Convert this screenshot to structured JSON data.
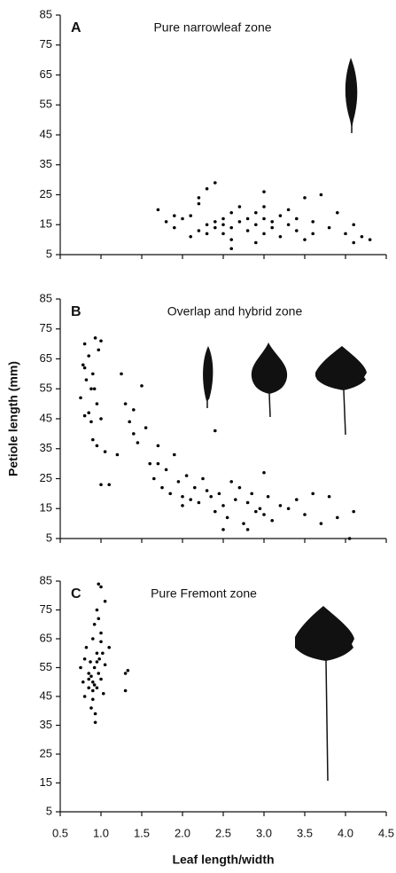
{
  "chart_data": [
    {
      "type": "scatter",
      "label": "A",
      "title": "Pure narrowleaf zone",
      "color": "#000000",
      "x": [
        1.7,
        1.8,
        1.9,
        2.0,
        2.1,
        2.1,
        2.2,
        2.2,
        2.3,
        2.3,
        2.4,
        2.4,
        2.5,
        2.5,
        2.5,
        2.6,
        2.6,
        2.6,
        2.7,
        2.7,
        2.8,
        2.8,
        2.9,
        2.9,
        3.0,
        3.0,
        3.0,
        3.1,
        3.1,
        3.2,
        3.2,
        3.3,
        3.3,
        3.4,
        3.4,
        3.5,
        3.5,
        3.6,
        3.6,
        3.7,
        3.8,
        3.9,
        4.0,
        4.1,
        4.1,
        4.2,
        4.3,
        2.2,
        2.4,
        2.6,
        2.9,
        3.0,
        1.9,
        2.3
      ],
      "y": [
        20,
        16,
        14,
        17,
        11,
        18,
        22,
        13,
        27,
        15,
        29,
        16,
        17,
        12,
        15,
        19,
        7,
        14,
        16,
        21,
        13,
        17,
        9,
        19,
        21,
        26,
        12,
        16,
        14,
        18,
        11,
        15,
        20,
        13,
        17,
        24,
        10,
        16,
        12,
        25,
        14,
        19,
        12,
        9,
        15,
        11,
        10,
        24,
        14,
        10,
        15,
        17,
        18,
        12
      ],
      "xlim": [
        0.5,
        4.5
      ],
      "ylim": [
        5,
        85
      ],
      "xticks": [
        0.5,
        1,
        1.5,
        2,
        2.5,
        3,
        3.5,
        4,
        4.5
      ],
      "yticks": [
        5,
        15,
        25,
        35,
        45,
        55,
        65,
        75,
        85
      ]
    },
    {
      "type": "scatter",
      "label": "B",
      "title": "Overlap and hybrid zone",
      "ylabel": "Petiole length (mm)",
      "color": "#000000",
      "x": [
        0.75,
        0.78,
        0.8,
        0.8,
        0.82,
        0.85,
        0.85,
        0.88,
        0.9,
        0.9,
        0.92,
        0.93,
        0.95,
        0.95,
        0.97,
        1.0,
        1.0,
        1.05,
        0.8,
        0.88,
        1.1,
        1.2,
        1.25,
        1.3,
        1.35,
        1.4,
        1.45,
        1.5,
        1.55,
        1.6,
        1.65,
        1.7,
        1.75,
        1.8,
        1.85,
        1.9,
        1.95,
        2.0,
        2.05,
        2.1,
        2.15,
        2.2,
        2.25,
        2.3,
        2.35,
        2.4,
        2.45,
        2.5,
        2.55,
        2.6,
        2.65,
        2.7,
        2.75,
        2.8,
        2.85,
        2.9,
        2.95,
        3.0,
        3.05,
        3.1,
        3.2,
        3.3,
        3.4,
        3.5,
        3.6,
        3.7,
        3.8,
        3.9,
        4.1,
        2.4,
        1.0,
        1.4,
        1.7,
        2.0,
        2.5,
        2.8,
        4.05,
        3.0
      ],
      "y": [
        52,
        63,
        70,
        46,
        58,
        47,
        66,
        44,
        60,
        38,
        55,
        72,
        50,
        36,
        68,
        45,
        71,
        34,
        62,
        55,
        23,
        33,
        60,
        50,
        44,
        40,
        37,
        56,
        42,
        30,
        25,
        36,
        22,
        28,
        20,
        33,
        24,
        19,
        26,
        18,
        22,
        17,
        25,
        21,
        19,
        14,
        20,
        16,
        12,
        24,
        18,
        22,
        10,
        17,
        20,
        14,
        15,
        27,
        19,
        11,
        16,
        15,
        18,
        13,
        20,
        10,
        19,
        12,
        14,
        41,
        23,
        48,
        30,
        16,
        8,
        8,
        5,
        13
      ],
      "xlim": [
        0.5,
        4.5
      ],
      "ylim": [
        5,
        85
      ],
      "xticks": [
        0.5,
        1,
        1.5,
        2,
        2.5,
        3,
        3.5,
        4,
        4.5
      ],
      "yticks": [
        5,
        15,
        25,
        35,
        45,
        55,
        65,
        75,
        85
      ]
    },
    {
      "type": "scatter",
      "label": "C",
      "title": "Pure Fremont zone",
      "xlabel": "Leaf length/width",
      "color": "#000000",
      "x": [
        0.75,
        0.78,
        0.8,
        0.8,
        0.82,
        0.85,
        0.85,
        0.87,
        0.88,
        0.9,
        0.9,
        0.9,
        0.92,
        0.92,
        0.93,
        0.95,
        0.95,
        0.95,
        0.97,
        0.97,
        0.98,
        1.0,
        1.0,
        1.0,
        1.02,
        1.03,
        1.05,
        1.05,
        1.1,
        0.88,
        0.93,
        0.97,
        0.9,
        1.3,
        1.33,
        1.3,
        0.95,
        1.0,
        0.85,
        0.92
      ],
      "y": [
        55,
        50,
        58,
        45,
        62,
        48,
        53,
        57,
        41,
        65,
        50,
        44,
        70,
        55,
        36,
        75,
        60,
        48,
        53,
        84,
        58,
        67,
        51,
        83,
        60,
        46,
        56,
        78,
        62,
        52,
        39,
        72,
        47,
        53,
        54,
        47,
        57,
        64,
        51,
        49
      ],
      "xlim": [
        0.5,
        4.5
      ],
      "ylim": [
        5,
        85
      ],
      "xticks": [
        {
          "value": 0.5,
          "label": "0.5"
        },
        {
          "value": 1,
          "label": "1.0"
        },
        {
          "value": 1.5,
          "label": "1.5"
        },
        {
          "value": 2,
          "label": "2.0"
        },
        {
          "value": 2.5,
          "label": "2.5"
        },
        {
          "value": 3,
          "label": "3.0"
        },
        {
          "value": 3.5,
          "label": "3.5"
        },
        {
          "value": 4,
          "label": "4.0"
        },
        {
          "value": 4.5,
          "label": "4.5"
        }
      ],
      "yticks": [
        5,
        15,
        25,
        35,
        45,
        55,
        65,
        75,
        85
      ]
    }
  ]
}
